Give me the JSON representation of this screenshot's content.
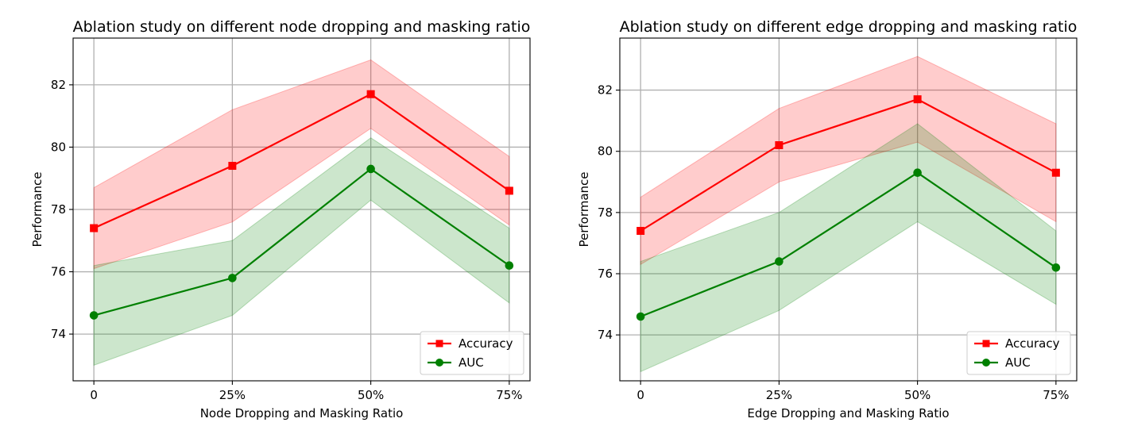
{
  "chart_data": [
    {
      "type": "line",
      "title": "Ablation study on different node dropping and masking ratio",
      "xlabel": "Node Dropping and Masking Ratio",
      "ylabel": "Performance",
      "categories": [
        "0",
        "25%",
        "50%",
        "75%"
      ],
      "ylim": [
        72.5,
        83.5
      ],
      "yticks": [
        74,
        76,
        78,
        80,
        82
      ],
      "grid": true,
      "legend_position": "lower-right",
      "series": [
        {
          "name": "Accuracy",
          "color": "#ff0000",
          "marker": "square",
          "values": [
            77.4,
            79.4,
            81.7,
            78.6
          ],
          "lower": [
            76.1,
            77.6,
            80.6,
            77.5
          ],
          "upper": [
            78.7,
            81.2,
            82.8,
            79.7
          ]
        },
        {
          "name": "AUC",
          "color": "#008000",
          "marker": "circle",
          "values": [
            74.6,
            75.8,
            79.3,
            76.2
          ],
          "lower": [
            73.0,
            74.6,
            78.3,
            75.0
          ],
          "upper": [
            76.2,
            77.0,
            80.3,
            77.4
          ]
        }
      ]
    },
    {
      "type": "line",
      "title": "Ablation study on different edge dropping and masking ratio",
      "xlabel": "Edge Dropping and Masking Ratio",
      "ylabel": "Performance",
      "categories": [
        "0",
        "25%",
        "50%",
        "75%"
      ],
      "ylim": [
        72.5,
        83.7
      ],
      "yticks": [
        74,
        76,
        78,
        80,
        82
      ],
      "grid": true,
      "legend_position": "lower-right",
      "series": [
        {
          "name": "Accuracy",
          "color": "#ff0000",
          "marker": "square",
          "values": [
            77.4,
            80.2,
            81.7,
            79.3
          ],
          "lower": [
            76.3,
            79.0,
            80.3,
            77.7
          ],
          "upper": [
            78.5,
            81.4,
            83.1,
            80.9
          ]
        },
        {
          "name": "AUC",
          "color": "#008000",
          "marker": "circle",
          "values": [
            74.6,
            76.4,
            79.3,
            76.2
          ],
          "lower": [
            72.8,
            74.8,
            77.7,
            75.0
          ],
          "upper": [
            76.4,
            78.0,
            80.9,
            77.4
          ]
        }
      ]
    }
  ]
}
